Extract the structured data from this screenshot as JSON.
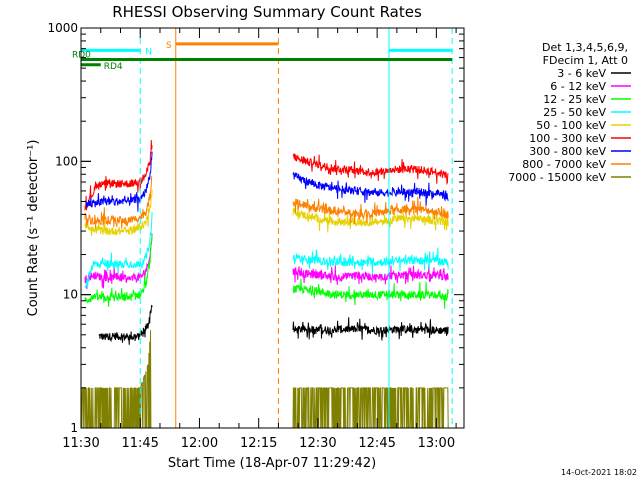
{
  "chart_data": {
    "type": "line",
    "title": "RHESSI Observing Summary Count Rates",
    "xlabel": "Start Time (18-Apr-07 11:29:42)",
    "ylabel": "Count Rate (s⁻¹ detector⁻¹)",
    "yscale": "log",
    "ylim": [
      1,
      1000
    ],
    "xlim_minutes": [
      0,
      97
    ],
    "x_ticks": [
      {
        "label": "11:30",
        "min": 0
      },
      {
        "label": "11:45",
        "min": 15
      },
      {
        "label": "12:00",
        "min": 30
      },
      {
        "label": "12:15",
        "min": 45
      },
      {
        "label": "12:30",
        "min": 60
      },
      {
        "label": "12:45",
        "min": 75
      },
      {
        "label": "13:00",
        "min": 90
      }
    ],
    "y_ticks": [
      {
        "label": "1",
        "value": 1
      },
      {
        "label": "10",
        "value": 10
      },
      {
        "label": "100",
        "value": 100
      },
      {
        "label": "1000",
        "value": 1000
      }
    ],
    "legend": {
      "placement": "right",
      "header": [
        "Det 1,3,4,5,6,9,",
        "FDecim 1, Att 0"
      ]
    },
    "series": [
      {
        "name": "3 - 6 keV",
        "color": "#000000",
        "segments": [
          {
            "x": [
              4.5,
              6,
              9,
              12,
              14,
              15.5,
              17,
              18
            ],
            "y": [
              4.9,
              4.8,
              4.9,
              4.8,
              4.8,
              5.0,
              6.0,
              8.5
            ]
          },
          {
            "x": [
              53.7,
              56,
              60,
              65,
              70,
              75,
              80,
              85,
              90,
              93
            ],
            "y": [
              5.4,
              5.5,
              5.4,
              5.5,
              5.5,
              5.4,
              5.5,
              5.5,
              5.4,
              5.4
            ]
          }
        ]
      },
      {
        "name": "6 - 12 keV",
        "color": "#ff00ff",
        "segments": [
          {
            "x": [
              1,
              3,
              6,
              9,
              12,
              15,
              16.5,
              17.5,
              18
            ],
            "y": [
              13,
              14,
              13.5,
              13.5,
              13,
              13.5,
              15,
              20,
              28
            ]
          },
          {
            "x": [
              53.7,
              56,
              60,
              65,
              70,
              75,
              80,
              85,
              90,
              93
            ],
            "y": [
              15,
              14.5,
              14,
              13.5,
              14,
              13.5,
              14,
              14,
              14,
              13.5
            ]
          }
        ]
      },
      {
        "name": "12 - 25 keV",
        "color": "#00ff00",
        "segments": [
          {
            "x": [
              1,
              3,
              6,
              9,
              12,
              15,
              16.5,
              17.5,
              18
            ],
            "y": [
              9,
              9.5,
              9.5,
              9.5,
              9.5,
              10,
              12,
              18,
              28
            ]
          },
          {
            "x": [
              53.7,
              56,
              60,
              65,
              70,
              75,
              80,
              85,
              90,
              93
            ],
            "y": [
              11,
              11,
              10.5,
              10,
              10,
              10,
              10,
              10,
              10,
              9.5
            ]
          }
        ]
      },
      {
        "name": "25 - 50 keV",
        "color": "#00ffff",
        "segments": [
          {
            "x": [
              1,
              3,
              6,
              9,
              12,
              15,
              16.5,
              17.5,
              18
            ],
            "y": [
              11,
              17,
              17,
              17,
              17,
              17,
              19,
              26,
              40
            ]
          },
          {
            "x": [
              53.7,
              56,
              60,
              65,
              70,
              75,
              80,
              85,
              90,
              93
            ],
            "y": [
              19,
              18.5,
              18,
              17.5,
              17.5,
              17.5,
              18,
              18,
              18,
              17.5
            ]
          }
        ]
      },
      {
        "name": "50 - 100 keV",
        "color": "#e6d200",
        "segments": [
          {
            "x": [
              1,
              3,
              6,
              9,
              12,
              15,
              16.5,
              17.5,
              18
            ],
            "y": [
              34,
              31,
              30,
              30,
              30,
              32,
              35,
              45,
              60
            ]
          },
          {
            "x": [
              53.7,
              56,
              60,
              65,
              70,
              75,
              80,
              85,
              90,
              93
            ],
            "y": [
              42,
              40,
              37,
              35,
              35,
              35,
              37,
              37,
              36,
              35
            ]
          }
        ]
      },
      {
        "name": "100 - 300 keV",
        "color": "#ff0000",
        "segments": [
          {
            "x": [
              1,
              4.3,
              6,
              9,
              12,
              15,
              16.5,
              17.5,
              18
            ],
            "y": [
              45,
              68,
              68,
              68,
              68,
              70,
              80,
              100,
              140
            ]
          },
          {
            "x": [
              53.7,
              56,
              60,
              65,
              70,
              75,
              80,
              85,
              90,
              93
            ],
            "y": [
              108,
              102,
              94,
              88,
              85,
              83,
              87,
              87,
              83,
              78
            ]
          }
        ]
      },
      {
        "name": "300 - 800 keV",
        "color": "#0000ff",
        "segments": [
          {
            "x": [
              1,
              3,
              6,
              9,
              12,
              15,
              16.5,
              17.5,
              18
            ],
            "y": [
              49,
              48,
              50,
              50,
              50,
              52,
              60,
              80,
              120
            ]
          },
          {
            "x": [
              53.7,
              56,
              60,
              65,
              70,
              75,
              80,
              85,
              90,
              93
            ],
            "y": [
              78,
              73,
              66,
              62,
              60,
              58,
              59,
              59,
              57,
              54
            ]
          }
        ]
      },
      {
        "name": "800 - 7000 keV",
        "color": "#ff8000",
        "segments": [
          {
            "x": [
              1,
              3,
              6,
              9,
              12,
              15,
              16.5,
              17.5,
              18
            ],
            "y": [
              39,
              36,
              36,
              36,
              36,
              38,
              42,
              55,
              80
            ]
          },
          {
            "x": [
              53.7,
              56,
              60,
              65,
              70,
              75,
              80,
              85,
              90,
              93
            ],
            "y": [
              50,
              47,
              44,
              42,
              41,
              41,
              43,
              44,
              42,
              40
            ]
          }
        ]
      },
      {
        "name": "7000 - 15000 keV",
        "color": "#808000",
        "segments": [
          {
            "x": [
              0,
              5,
              10,
              15,
              17,
              18
            ],
            "y": [
              2,
              2,
              2,
              2,
              3,
              8
            ]
          },
          {
            "x": [
              53.7,
              60,
              65,
              70,
              75,
              80,
              85,
              90,
              93
            ],
            "y": [
              2,
              2,
              2,
              2,
              2,
              2,
              2,
              2,
              2
            ]
          }
        ]
      }
    ],
    "annotations": [
      {
        "text": "N",
        "color": "#00ffff",
        "kind": "night-bar",
        "x": [
          0,
          15
        ],
        "y": 680
      },
      {
        "text": "",
        "color": "#00ffff",
        "kind": "night-bar",
        "x": [
          78,
          94
        ],
        "y": 680
      },
      {
        "text": "S",
        "color": "#ff8000",
        "kind": "saa-bar",
        "x": [
          24,
          50
        ],
        "y": 760
      },
      {
        "text": "RD0",
        "color": "#008000",
        "kind": "decim-bar",
        "x": [
          0,
          94
        ],
        "y": 580
      },
      {
        "text": "RD4",
        "color": "#008000",
        "kind": "decim-bar",
        "x": [
          0,
          5
        ],
        "y": 530
      }
    ],
    "vlines": [
      {
        "min": 0,
        "color": "#00ffff",
        "style": "solid"
      },
      {
        "min": 15,
        "color": "#00ffff",
        "style": "dashed"
      },
      {
        "min": 24,
        "color": "#ff8000",
        "style": "solid"
      },
      {
        "min": 50,
        "color": "#ff8000",
        "style": "dashed"
      },
      {
        "min": 78,
        "color": "#00ffff",
        "style": "solid"
      },
      {
        "min": 94,
        "color": "#00ffff",
        "style": "dashed"
      }
    ],
    "footer_date": "14-Oct-2021 18:02"
  }
}
